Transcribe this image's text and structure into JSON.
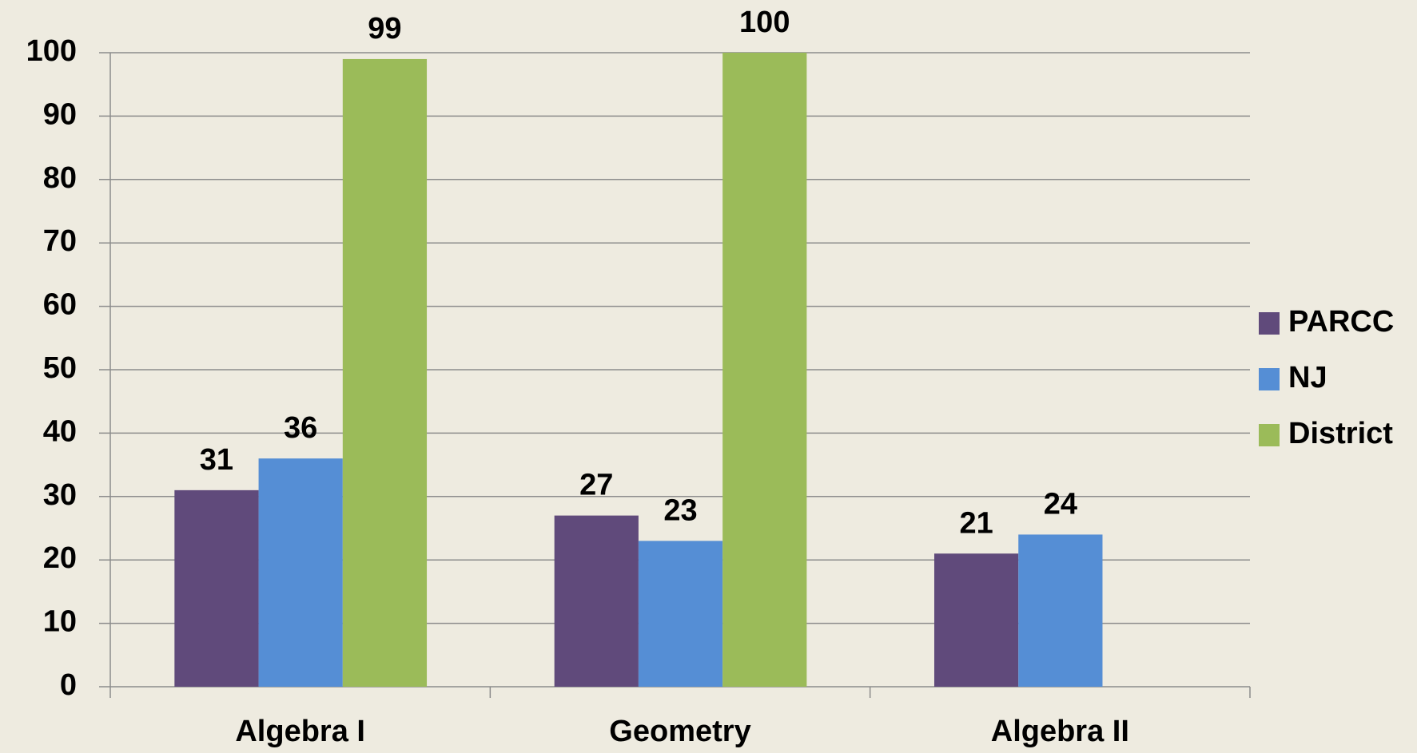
{
  "chart_data": {
    "type": "bar",
    "categories": [
      "Algebra I",
      "Geometry",
      "Algebra II"
    ],
    "series": [
      {
        "name": "PARCC",
        "color": "#604a7b",
        "values": [
          31,
          27,
          21
        ]
      },
      {
        "name": "NJ",
        "color": "#558ed5",
        "values": [
          36,
          23,
          24
        ]
      },
      {
        "name": "District",
        "color": "#9bbb59",
        "values": [
          99,
          100,
          null
        ]
      }
    ],
    "ylim": [
      0,
      100
    ],
    "yticks": [
      0,
      10,
      20,
      30,
      40,
      50,
      60,
      70,
      80,
      90,
      100
    ],
    "grid": true,
    "legend": "right"
  }
}
